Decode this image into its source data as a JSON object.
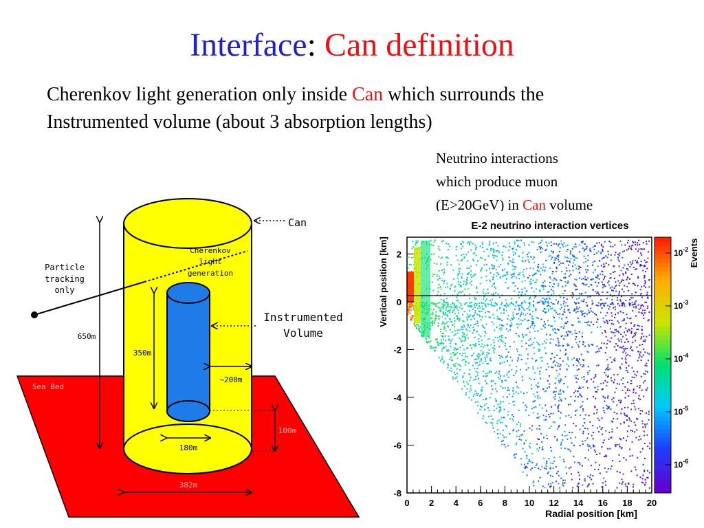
{
  "slide": {
    "title_part1": "Interface",
    "title_colon": ":",
    "title_part2": "Can definition",
    "subtitle_line1_before": "Cherenkov light generation only inside ",
    "subtitle_line1_red": "Can",
    "subtitle_line1_after": " which surrounds the",
    "subtitle_line2": "Instrumented volume (about 3 absorption lengths)",
    "note_line1": "Neutrino interactions",
    "note_line2": "which produce muon",
    "note_line3_before": "(E>20GeV) in ",
    "note_line3_red": "Can",
    "note_line3_after": " volume"
  },
  "diagram": {
    "can_label": "Can",
    "cherenkov_line1": "Cherenkov",
    "cherenkov_line2": "light",
    "cherenkov_line3": "generation",
    "particle_line1": "Particle",
    "particle_line2": "tracking",
    "particle_line3": "only",
    "instrumented_line1": "Instrumented",
    "instrumented_line2": "Volume",
    "dim_650": "650m",
    "dim_350": "350m",
    "dim_200": "~200m",
    "dim_180": "180m",
    "dim_100": "100m",
    "dim_ground": "Sea Bed",
    "dim_base": "382m",
    "colors": {
      "can": "#ffff00",
      "instrumented": "#1e7be8",
      "seabed": "#ff0000"
    }
  },
  "chart_data": {
    "type": "heatmap",
    "title": "E-2 neutrino interaction vertices",
    "xlabel": "Radial position [km]",
    "ylabel": "Vertical position [km]",
    "zlabel": "Events",
    "xlim": [
      0,
      20
    ],
    "ylim": [
      -8,
      2.7
    ],
    "x_ticks": [
      0,
      2,
      4,
      6,
      8,
      10,
      12,
      14,
      16,
      18,
      20
    ],
    "y_ticks": [
      2,
      0,
      -2,
      -4,
      -6,
      -8
    ],
    "z_scale": "log",
    "z_tick_labels": [
      "10-2",
      "10-3",
      "10-4",
      "10-5",
      "10-6"
    ],
    "colors": [
      "#6600cc",
      "#1e3cff",
      "#00c8ff",
      "#00e070",
      "#c8e600",
      "#ffb000",
      "#ff2000"
    ]
  }
}
